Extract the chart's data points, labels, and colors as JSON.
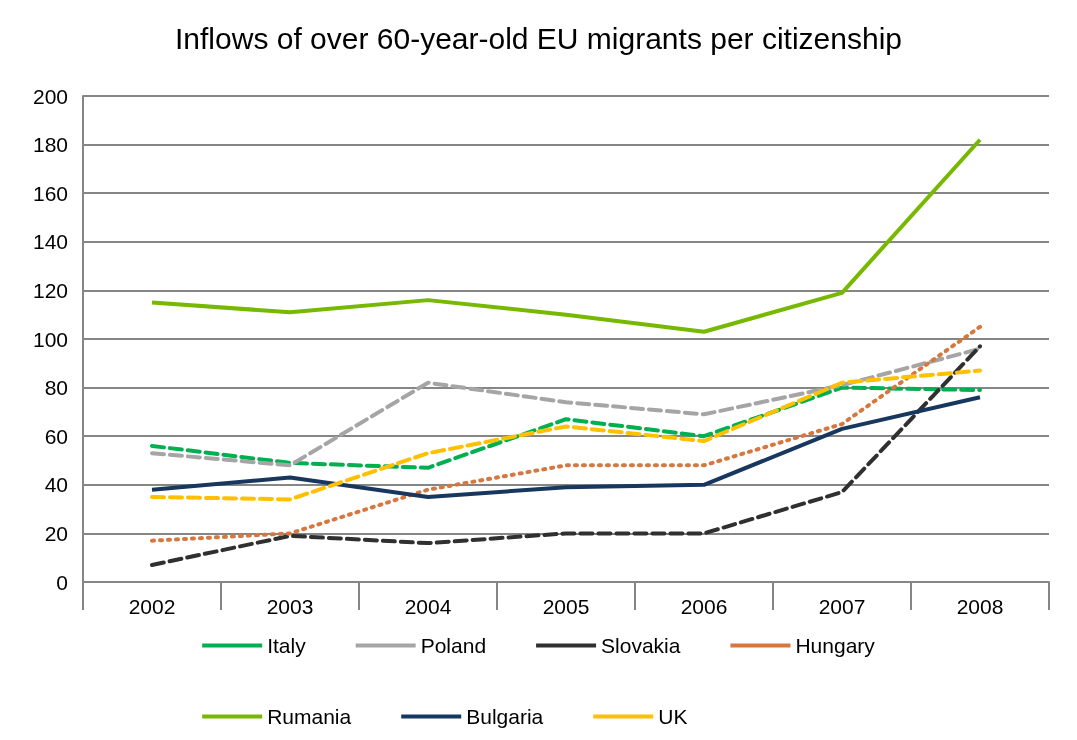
{
  "chart_data": {
    "type": "line",
    "title": "Inflows of over 60-year-old EU migrants per citizenship",
    "categories": [
      "2002",
      "2003",
      "2004",
      "2005",
      "2006",
      "2007",
      "2008"
    ],
    "ylim": [
      0,
      200
    ],
    "yticks": [
      0,
      20,
      40,
      60,
      80,
      100,
      120,
      140,
      160,
      180,
      200
    ],
    "grid": "y",
    "legend": "bottom",
    "marker": "none",
    "series": [
      {
        "name": "Italy",
        "color": "#00b050",
        "line_style": "dashed",
        "values": [
          56,
          49,
          47,
          67,
          60,
          80,
          79
        ]
      },
      {
        "name": "Poland",
        "color": "#a5a5a5",
        "line_style": "dashed",
        "values": [
          53,
          48,
          82,
          74,
          69,
          81,
          96
        ]
      },
      {
        "name": "Slovakia",
        "color": "#303030",
        "line_style": "dashed",
        "values": [
          7,
          19,
          16,
          20,
          20,
          37,
          97
        ]
      },
      {
        "name": "Hungary",
        "color": "#d6773f",
        "line_style": "dotted",
        "values": [
          17,
          20,
          38,
          48,
          48,
          65,
          105
        ]
      },
      {
        "name": "Rumania",
        "color": "#77b800",
        "line_style": "solid",
        "values": [
          115,
          111,
          116,
          110,
          103,
          119,
          182
        ]
      },
      {
        "name": "Bulgaria",
        "color": "#17375e",
        "line_style": "solid",
        "values": [
          38,
          43,
          35,
          39,
          40,
          63,
          76
        ]
      },
      {
        "name": "UK",
        "color": "#ffc000",
        "line_style": "dashed",
        "values": [
          35,
          34,
          53,
          64,
          58,
          82,
          87
        ]
      }
    ]
  }
}
